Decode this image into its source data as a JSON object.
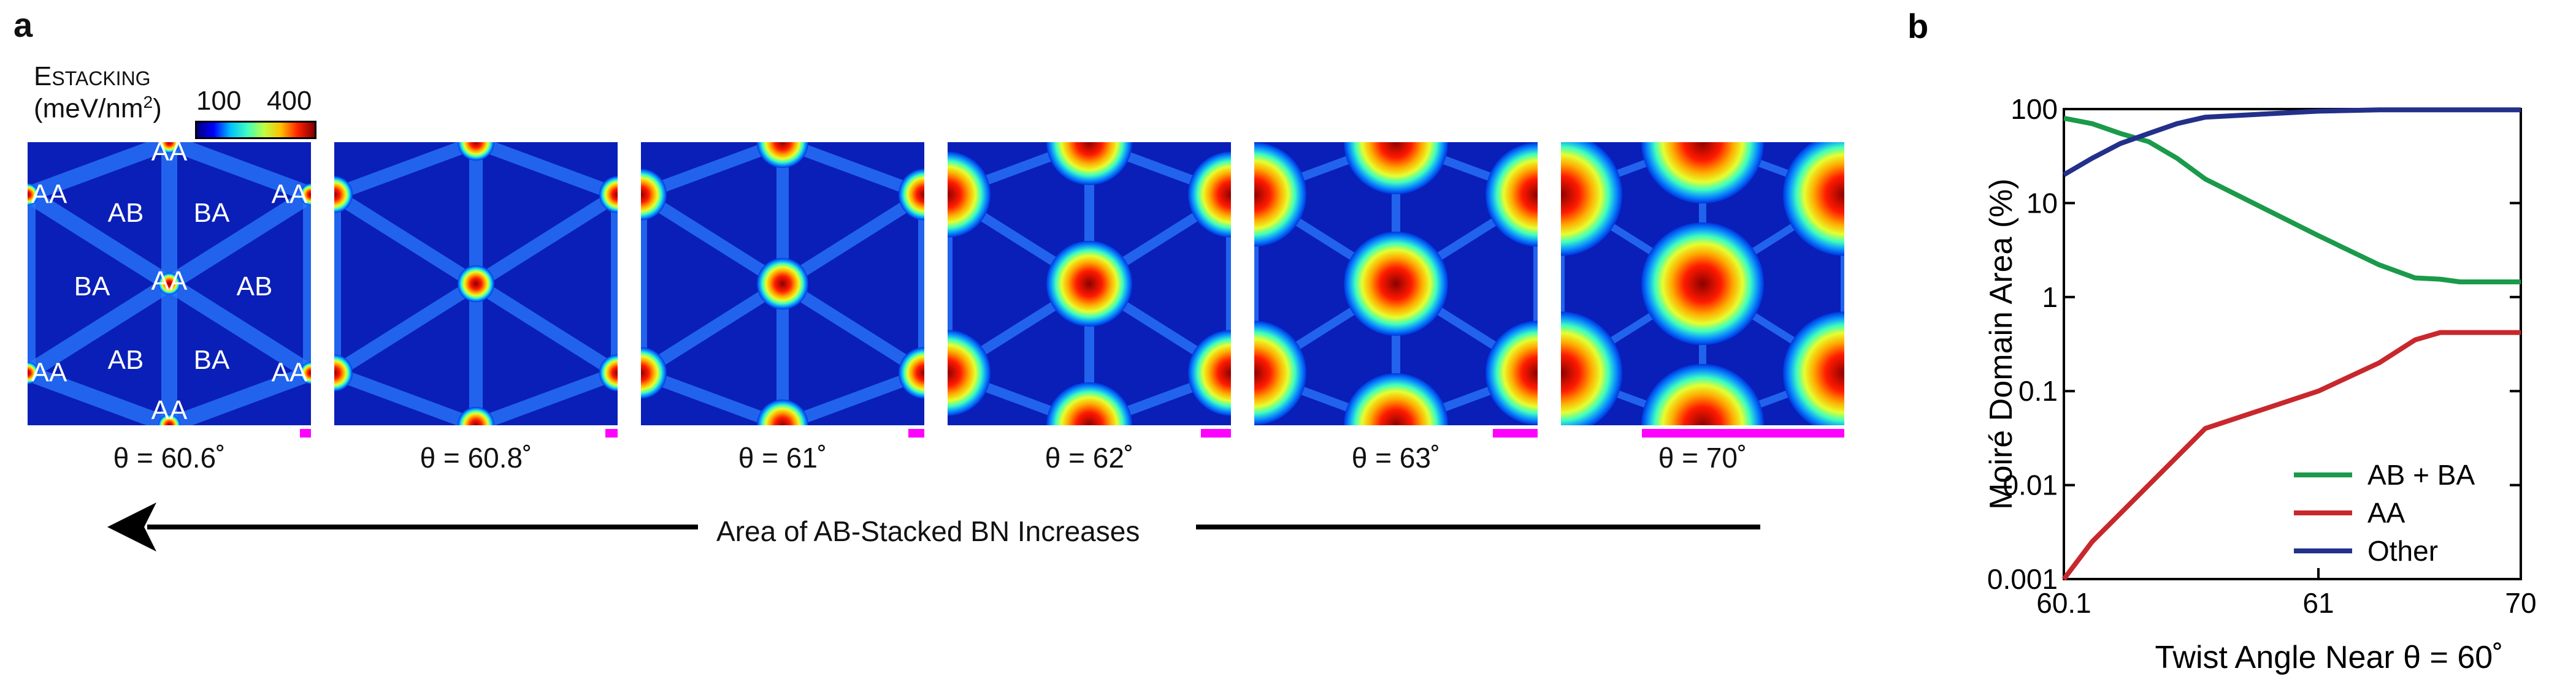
{
  "panel_a": {
    "letter": "a",
    "colorbar": {
      "title_main": "E",
      "title_sub": "STACKING",
      "unit_prefix": "(meV/nm",
      "unit_sup": "2",
      "unit_suffix": ")",
      "tick_low": "100",
      "tick_high": "400"
    },
    "maps": [
      {
        "theta": "θ = 60.6˚",
        "scale_fraction": 0.05,
        "label_aa": "AA",
        "label_ab": "AB",
        "label_ba": "BA"
      },
      {
        "theta": "θ = 60.8˚",
        "scale_fraction": 0.06
      },
      {
        "theta": "θ = 61˚",
        "scale_fraction": 0.08
      },
      {
        "theta": "θ = 62˚",
        "scale_fraction": 0.15
      },
      {
        "theta": "θ = 63˚",
        "scale_fraction": 0.22
      },
      {
        "theta": "θ = 70˚",
        "scale_fraction": 1.0
      }
    ],
    "arrow_text": "Area of AB-Stacked BN Increases"
  },
  "chart_data": {
    "type": "line",
    "panel_letter": "b",
    "xlabel": "Twist Angle Near θ = 60˚",
    "ylabel": "Moiré Domain Area (%)",
    "x_tick_labels": [
      "60.1",
      "61",
      "70"
    ],
    "y_tick_labels": [
      "100",
      "10",
      "1",
      "0.1",
      "0.01",
      "0.001"
    ],
    "ylim": [
      0.001,
      100
    ],
    "yscale": "log",
    "legend_position": "bottom-right",
    "grid": false,
    "series": [
      {
        "name": "AB + BA",
        "color": "#1a9a4a",
        "x": [
          60.1,
          60.2,
          60.3,
          60.4,
          60.5,
          60.6,
          61,
          62,
          63,
          64,
          65,
          70
        ],
        "y": [
          80,
          70,
          55,
          45,
          30,
          18,
          4.5,
          2.2,
          1.6,
          1.55,
          1.45,
          1.45
        ]
      },
      {
        "name": "AA",
        "color": "#c8282c",
        "x": [
          60.1,
          60.2,
          60.3,
          60.4,
          60.5,
          60.6,
          61,
          62,
          63,
          64,
          65,
          70
        ],
        "y": [
          0.001,
          0.0025,
          0.005,
          0.01,
          0.02,
          0.04,
          0.1,
          0.2,
          0.35,
          0.42,
          0.42,
          0.42
        ]
      },
      {
        "name": "Other",
        "color": "#23308a",
        "x": [
          60.1,
          60.2,
          60.3,
          60.4,
          60.5,
          60.6,
          61,
          62,
          63,
          64,
          65,
          70
        ],
        "y": [
          20,
          30,
          43,
          55,
          70,
          82,
          95,
          98,
          98,
          98,
          98,
          98
        ]
      }
    ]
  }
}
